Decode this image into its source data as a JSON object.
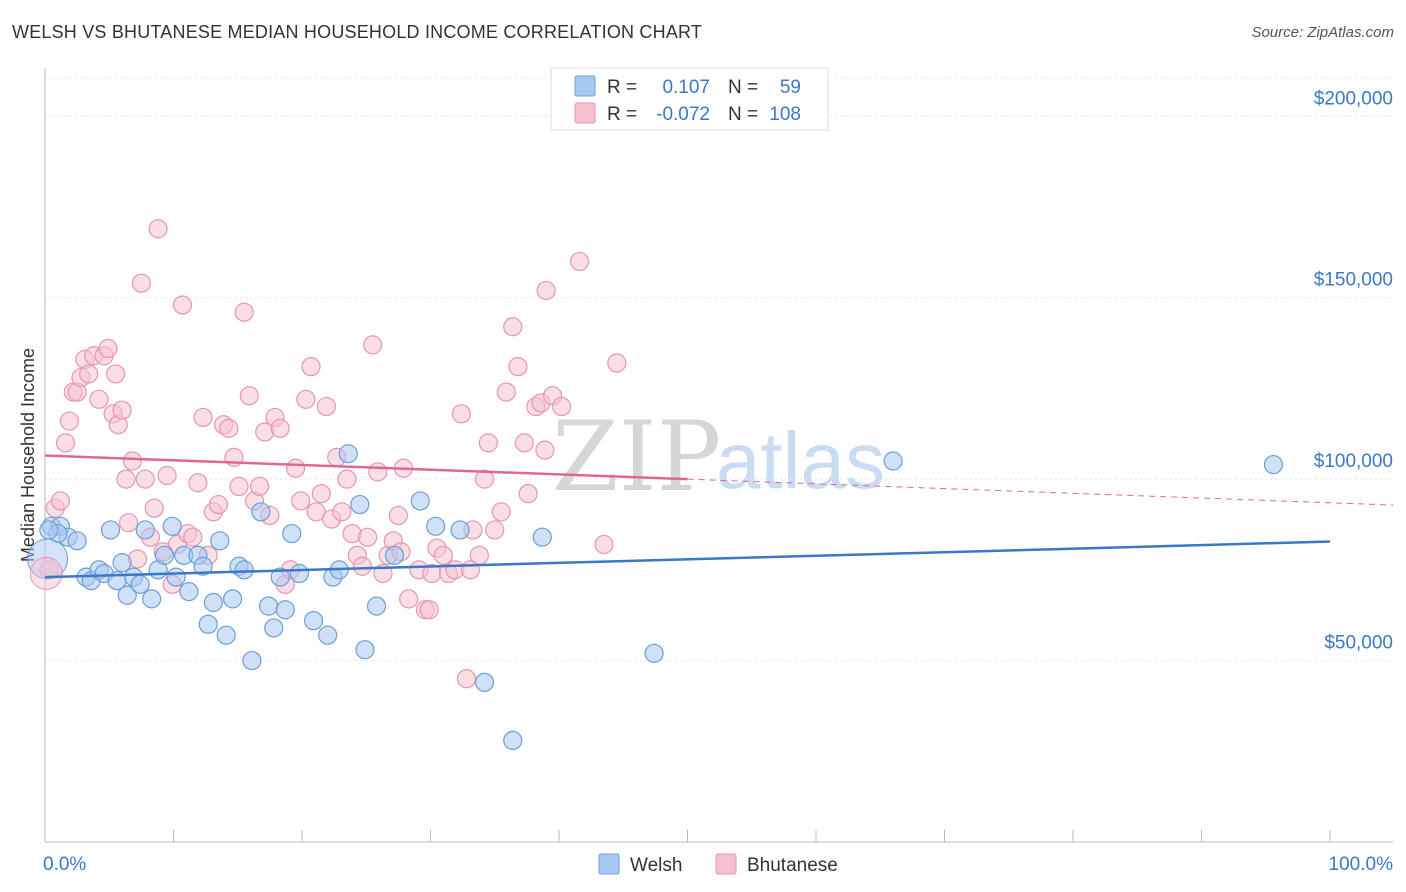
{
  "header": {
    "title": "WELSH VS BHUTANESE MEDIAN HOUSEHOLD INCOME CORRELATION CHART",
    "source": "Source: ZipAtlas.com"
  },
  "watermark": {
    "zip": "ZIP",
    "atlas": "atlas"
  },
  "legend_box": {
    "rows": [
      {
        "r_label": "R =",
        "r_value": "0.107",
        "n_label": "N =",
        "n_value": "59",
        "color": "#a9c8f0",
        "stroke": "#6a9fd8"
      },
      {
        "r_label": "R =",
        "r_value": "-0.072",
        "n_label": "N =",
        "n_value": "108",
        "color": "#f6c2d2",
        "stroke": "#e895b0"
      }
    ]
  },
  "bottom_legend": {
    "welsh": "Welsh",
    "bhutanese": "Bhutanese"
  },
  "chart_data": {
    "type": "scatter",
    "title": "WELSH VS BHUTANESE MEDIAN HOUSEHOLD INCOME CORRELATION CHART",
    "xlabel": "",
    "ylabel": "Median Household Income",
    "xlim": [
      0,
      100
    ],
    "ylim": [
      0,
      210000
    ],
    "x_tick_labels": [
      "0.0%",
      "100.0%"
    ],
    "y_ticks": [
      50000,
      100000,
      150000,
      200000
    ],
    "y_tick_labels": [
      "$50,000",
      "$100,000",
      "$150,000",
      "$200,000"
    ],
    "grid": true,
    "legend_position": "bottom",
    "colors": {
      "welsh": "#3a78c9",
      "bhutanese": "#e06890",
      "welsh_fill": "#a9c8f0",
      "bhutanese_fill": "#f6c2d2"
    },
    "series": [
      {
        "name": "Welsh",
        "trend": {
          "x": [
            0,
            100
          ],
          "y": [
            73000,
            82800
          ]
        },
        "points": [
          [
            0.5,
            87000
          ],
          [
            1.2,
            87000
          ],
          [
            1.8,
            84000
          ],
          [
            2.5,
            83000
          ],
          [
            1.0,
            85000
          ],
          [
            3.2,
            73000
          ],
          [
            3.6,
            72000
          ],
          [
            4.2,
            75000
          ],
          [
            4.6,
            74000
          ],
          [
            5.1,
            86000
          ],
          [
            5.6,
            72000
          ],
          [
            6.0,
            77000
          ],
          [
            6.4,
            68000
          ],
          [
            6.9,
            73000
          ],
          [
            7.4,
            71000
          ],
          [
            7.8,
            86000
          ],
          [
            8.3,
            67000
          ],
          [
            8.8,
            75000
          ],
          [
            9.3,
            79000
          ],
          [
            9.9,
            87000
          ],
          [
            10.2,
            73000
          ],
          [
            10.8,
            79000
          ],
          [
            11.2,
            69000
          ],
          [
            11.9,
            79000
          ],
          [
            12.3,
            76000
          ],
          [
            12.7,
            60000
          ],
          [
            13.1,
            66000
          ],
          [
            13.6,
            83000
          ],
          [
            14.1,
            57000
          ],
          [
            14.6,
            67000
          ],
          [
            15.1,
            76000
          ],
          [
            15.5,
            75000
          ],
          [
            16.1,
            50000
          ],
          [
            16.8,
            91000
          ],
          [
            17.4,
            65000
          ],
          [
            17.8,
            59000
          ],
          [
            18.3,
            73000
          ],
          [
            18.7,
            64000
          ],
          [
            19.2,
            85000
          ],
          [
            19.8,
            74000
          ],
          [
            20.9,
            61000
          ],
          [
            22.0,
            57000
          ],
          [
            22.4,
            73000
          ],
          [
            22.9,
            75000
          ],
          [
            23.6,
            107000
          ],
          [
            24.5,
            93000
          ],
          [
            24.9,
            53000
          ],
          [
            25.8,
            65000
          ],
          [
            27.2,
            79000
          ],
          [
            29.2,
            94000
          ],
          [
            30.4,
            87000
          ],
          [
            32.3,
            86000
          ],
          [
            34.2,
            44000
          ],
          [
            36.4,
            28000
          ],
          [
            38.7,
            84000
          ],
          [
            47.4,
            52000
          ],
          [
            66.0,
            105000
          ],
          [
            95.6,
            104000
          ],
          [
            0.3,
            86000
          ]
        ]
      },
      {
        "name": "Bhutanese",
        "trend": {
          "x": [
            0,
            50
          ],
          "y": [
            106500,
            100000
          ]
        },
        "points": [
          [
            0.3,
            75000
          ],
          [
            0.8,
            92000
          ],
          [
            1.2,
            94000
          ],
          [
            1.6,
            110000
          ],
          [
            1.9,
            116000
          ],
          [
            2.2,
            124000
          ],
          [
            2.5,
            124000
          ],
          [
            2.8,
            128000
          ],
          [
            3.1,
            133000
          ],
          [
            3.4,
            129000
          ],
          [
            3.8,
            134000
          ],
          [
            4.2,
            122000
          ],
          [
            4.6,
            134000
          ],
          [
            4.9,
            136000
          ],
          [
            5.3,
            118000
          ],
          [
            5.5,
            129000
          ],
          [
            5.7,
            115000
          ],
          [
            6.0,
            119000
          ],
          [
            6.3,
            100000
          ],
          [
            6.5,
            88000
          ],
          [
            6.8,
            105000
          ],
          [
            7.2,
            78000
          ],
          [
            7.5,
            154000
          ],
          [
            7.8,
            100000
          ],
          [
            8.2,
            84000
          ],
          [
            8.5,
            92000
          ],
          [
            8.8,
            169000
          ],
          [
            9.2,
            80000
          ],
          [
            9.5,
            101000
          ],
          [
            9.9,
            71000
          ],
          [
            10.3,
            82000
          ],
          [
            10.7,
            148000
          ],
          [
            11.1,
            85000
          ],
          [
            11.5,
            84000
          ],
          [
            11.9,
            99000
          ],
          [
            12.3,
            117000
          ],
          [
            12.7,
            79000
          ],
          [
            13.1,
            91000
          ],
          [
            13.5,
            93000
          ],
          [
            13.9,
            115000
          ],
          [
            14.3,
            114000
          ],
          [
            14.7,
            106000
          ],
          [
            15.1,
            98000
          ],
          [
            15.5,
            146000
          ],
          [
            15.9,
            123000
          ],
          [
            16.3,
            94000
          ],
          [
            16.7,
            98000
          ],
          [
            17.1,
            113000
          ],
          [
            17.5,
            90000
          ],
          [
            17.9,
            117000
          ],
          [
            18.3,
            114000
          ],
          [
            18.7,
            71000
          ],
          [
            19.1,
            75000
          ],
          [
            19.5,
            103000
          ],
          [
            19.9,
            94000
          ],
          [
            20.3,
            122000
          ],
          [
            20.7,
            131000
          ],
          [
            21.1,
            91000
          ],
          [
            21.5,
            96000
          ],
          [
            21.9,
            120000
          ],
          [
            22.3,
            89000
          ],
          [
            22.7,
            106000
          ],
          [
            23.1,
            91000
          ],
          [
            23.5,
            100000
          ],
          [
            23.9,
            85000
          ],
          [
            24.3,
            79000
          ],
          [
            24.7,
            76000
          ],
          [
            25.1,
            84000
          ],
          [
            25.5,
            137000
          ],
          [
            25.9,
            102000
          ],
          [
            26.3,
            74000
          ],
          [
            26.7,
            79000
          ],
          [
            27.1,
            83000
          ],
          [
            27.5,
            90000
          ],
          [
            27.9,
            103000
          ],
          [
            28.3,
            67000
          ],
          [
            29.1,
            75000
          ],
          [
            29.6,
            64000
          ],
          [
            30.1,
            74000
          ],
          [
            30.5,
            81000
          ],
          [
            31.0,
            79000
          ],
          [
            31.4,
            74000
          ],
          [
            31.9,
            75000
          ],
          [
            32.4,
            118000
          ],
          [
            32.8,
            45000
          ],
          [
            33.3,
            86000
          ],
          [
            33.8,
            79000
          ],
          [
            34.2,
            100000
          ],
          [
            34.5,
            110000
          ],
          [
            35.0,
            86000
          ],
          [
            35.5,
            91000
          ],
          [
            35.9,
            124000
          ],
          [
            36.4,
            142000
          ],
          [
            36.8,
            131000
          ],
          [
            37.3,
            110000
          ],
          [
            37.6,
            96000
          ],
          [
            38.2,
            120000
          ],
          [
            38.6,
            121000
          ],
          [
            39.0,
            152000
          ],
          [
            39.5,
            123000
          ],
          [
            40.2,
            120000
          ],
          [
            41.6,
            160000
          ],
          [
            43.5,
            82000
          ],
          [
            44.5,
            132000
          ],
          [
            38.9,
            108000
          ],
          [
            33.1,
            75000
          ],
          [
            29.9,
            64000
          ],
          [
            27.7,
            80000
          ]
        ]
      }
    ]
  }
}
